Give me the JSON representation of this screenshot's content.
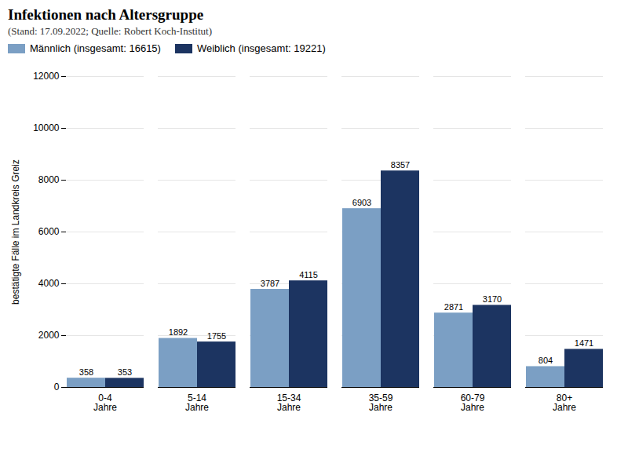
{
  "chart_data": {
    "type": "bar",
    "title": "Infektionen nach Altersgruppe",
    "subtitle": "(Stand: 17.09.2022; Quelle: Robert Koch-Institut)",
    "ylabel": "bestätigte Fälle im Landkreis Greiz",
    "categories": [
      "0-4\nJahre",
      "5-14\nJahre",
      "15-34\nJahre",
      "35-59\nJahre",
      "60-79\nJahre",
      "80+\nJahre"
    ],
    "series": [
      {
        "name": "Männlich (insgesamt: 16615)",
        "color": "#7b9fc4",
        "values": [
          358,
          1892,
          3787,
          6903,
          2871,
          804
        ]
      },
      {
        "name": "Weiblich (insgesamt: 19221)",
        "color": "#1c3461",
        "values": [
          353,
          1755,
          4115,
          8357,
          3170,
          1471
        ]
      }
    ],
    "ylim": [
      0,
      12000
    ],
    "yticks": [
      0,
      2000,
      4000,
      6000,
      8000,
      10000,
      12000
    ],
    "grid": true,
    "legend": "upper left",
    "data_labels": true
  }
}
